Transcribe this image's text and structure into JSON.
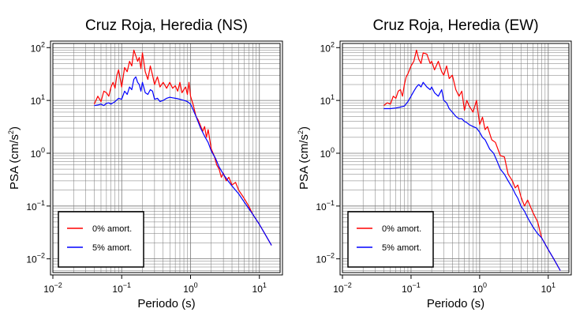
{
  "chart_data": [
    {
      "type": "line",
      "title": "Cruz Roja, Heredia (NS)",
      "xlabel": "Periodo (s)",
      "ylabel": "PSA (cm/s²)",
      "ylabel_base": "PSA (cm/s",
      "ylabel_exp": "2",
      "ylabel_end": ")",
      "x_scale": "log",
      "y_scale": "log",
      "xlim": [
        0.01,
        20
      ],
      "ylim": [
        0.0055,
        120
      ],
      "x_ticks": [
        {
          "v": 0.01,
          "base": "10",
          "exp": "−2"
        },
        {
          "v": 0.1,
          "base": "10",
          "exp": "−1"
        },
        {
          "v": 1,
          "base": "10",
          "exp": "0"
        },
        {
          "v": 10,
          "base": "10",
          "exp": "1"
        }
      ],
      "y_ticks": [
        {
          "v": 0.01,
          "base": "10",
          "exp": "−2"
        },
        {
          "v": 0.1,
          "base": "10",
          "exp": "−1"
        },
        {
          "v": 1,
          "base": "10",
          "exp": "0"
        },
        {
          "v": 10,
          "base": "10",
          "exp": "1"
        },
        {
          "v": 100,
          "base": "10",
          "exp": "2"
        }
      ],
      "grid": true,
      "legend_position": "bottom-left",
      "series": [
        {
          "name": "0% amort.",
          "color": "#ff0000",
          "x": [
            0.04,
            0.045,
            0.05,
            0.055,
            0.06,
            0.065,
            0.07,
            0.075,
            0.08,
            0.085,
            0.09,
            0.1,
            0.11,
            0.12,
            0.13,
            0.14,
            0.15,
            0.16,
            0.17,
            0.18,
            0.19,
            0.2,
            0.22,
            0.24,
            0.26,
            0.28,
            0.3,
            0.33,
            0.36,
            0.4,
            0.45,
            0.5,
            0.55,
            0.6,
            0.65,
            0.7,
            0.75,
            0.8,
            0.85,
            0.9,
            0.95,
            1.0,
            1.1,
            1.2,
            1.3,
            1.4,
            1.5,
            1.6,
            1.7,
            1.8,
            2.0,
            2.2,
            2.4,
            2.6,
            2.8,
            3.0,
            3.3,
            3.6,
            4.0,
            4.5,
            5.0,
            6.0,
            7.0,
            8.0,
            10.0,
            12.0,
            15.0
          ],
          "y": [
            8.5,
            12,
            9.5,
            15,
            14,
            12,
            18,
            22,
            17,
            30,
            38,
            18,
            42,
            35,
            55,
            45,
            90,
            70,
            55,
            65,
            40,
            80,
            35,
            25,
            45,
            30,
            20,
            28,
            18,
            22,
            17,
            22,
            17,
            19,
            15,
            22,
            14,
            16,
            18,
            13,
            22,
            12,
            8,
            5,
            4.2,
            3.3,
            2.6,
            3.2,
            2.0,
            2.8,
            1.2,
            0.9,
            0.6,
            0.5,
            0.35,
            0.42,
            0.3,
            0.35,
            0.25,
            0.28,
            0.2,
            0.14,
            0.1,
            0.07,
            0.045,
            0.03,
            0.018
          ]
        },
        {
          "name": "5% amort.",
          "color": "#0000ff",
          "x": [
            0.04,
            0.045,
            0.05,
            0.055,
            0.06,
            0.065,
            0.07,
            0.08,
            0.09,
            0.1,
            0.11,
            0.12,
            0.13,
            0.14,
            0.15,
            0.16,
            0.17,
            0.18,
            0.19,
            0.2,
            0.22,
            0.24,
            0.26,
            0.28,
            0.3,
            0.33,
            0.36,
            0.4,
            0.45,
            0.5,
            0.55,
            0.6,
            0.65,
            0.7,
            0.8,
            0.9,
            1.0,
            1.1,
            1.2,
            1.4,
            1.6,
            1.8,
            2.0,
            2.3,
            2.6,
            3.0,
            3.5,
            4.0,
            5.0,
            6.0,
            7.0,
            8.0,
            10.0,
            12.0,
            15.0
          ],
          "y": [
            8.0,
            8.2,
            8.5,
            8.0,
            8.8,
            9.0,
            8.5,
            9.5,
            11,
            10.5,
            15,
            13,
            18,
            16,
            25,
            28,
            22,
            20,
            15,
            22,
            14,
            13,
            16,
            15,
            10.5,
            11,
            9.5,
            10,
            11,
            11.5,
            11.2,
            11,
            10.8,
            10.5,
            10,
            9.5,
            8.5,
            6.5,
            5,
            3,
            2.1,
            1.6,
            1.1,
            0.8,
            0.55,
            0.4,
            0.3,
            0.24,
            0.17,
            0.12,
            0.09,
            0.07,
            0.045,
            0.03,
            0.018
          ]
        }
      ]
    },
    {
      "type": "line",
      "title": "Cruz Roja, Heredia (EW)",
      "xlabel": "Periodo (s)",
      "ylabel": "PSA (cm/s²)",
      "ylabel_base": "PSA (cm/s",
      "ylabel_exp": "2",
      "ylabel_end": ")",
      "x_scale": "log",
      "y_scale": "log",
      "xlim": [
        0.01,
        20
      ],
      "ylim": [
        0.0055,
        120
      ],
      "x_ticks": [
        {
          "v": 0.01,
          "base": "10",
          "exp": "−2"
        },
        {
          "v": 0.1,
          "base": "10",
          "exp": "−1"
        },
        {
          "v": 1,
          "base": "10",
          "exp": "0"
        },
        {
          "v": 10,
          "base": "10",
          "exp": "1"
        }
      ],
      "y_ticks": [
        {
          "v": 0.01,
          "base": "10",
          "exp": "−2"
        },
        {
          "v": 0.1,
          "base": "10",
          "exp": "−1"
        },
        {
          "v": 1,
          "base": "10",
          "exp": "0"
        },
        {
          "v": 10,
          "base": "10",
          "exp": "1"
        },
        {
          "v": 100,
          "base": "10",
          "exp": "2"
        }
      ],
      "grid": true,
      "legend_position": "bottom-left",
      "series": [
        {
          "name": "0% amort.",
          "color": "#ff0000",
          "x": [
            0.04,
            0.045,
            0.05,
            0.055,
            0.06,
            0.065,
            0.07,
            0.075,
            0.08,
            0.085,
            0.09,
            0.1,
            0.11,
            0.12,
            0.13,
            0.14,
            0.15,
            0.17,
            0.19,
            0.2,
            0.22,
            0.25,
            0.28,
            0.3,
            0.33,
            0.36,
            0.4,
            0.45,
            0.5,
            0.55,
            0.6,
            0.65,
            0.7,
            0.8,
            0.9,
            1.0,
            1.1,
            1.2,
            1.3,
            1.5,
            1.7,
            2.0,
            2.3,
            2.6,
            3.0,
            3.3,
            3.6,
            4.0,
            4.5,
            5.0,
            6.0,
            7.0,
            8.0,
            10.0,
            12.0,
            15.0
          ],
          "y": [
            8.0,
            9.0,
            8.5,
            12,
            11,
            15,
            16,
            12,
            20,
            28,
            32,
            45,
            55,
            90,
            60,
            50,
            80,
            75,
            50,
            55,
            38,
            55,
            35,
            30,
            45,
            26,
            30,
            16,
            12,
            15,
            6.5,
            10,
            8,
            6,
            10,
            3.5,
            4.8,
            2.8,
            3.2,
            1.8,
            1.6,
            0.9,
            0.85,
            0.4,
            0.3,
            0.22,
            0.25,
            0.15,
            0.1,
            0.13,
            0.075,
            0.05,
            0.025,
            0.015,
            0.01,
            0.006
          ]
        },
        {
          "name": "5% amort.",
          "color": "#0000ff",
          "x": [
            0.04,
            0.05,
            0.06,
            0.07,
            0.08,
            0.09,
            0.1,
            0.11,
            0.12,
            0.13,
            0.14,
            0.15,
            0.17,
            0.19,
            0.2,
            0.22,
            0.25,
            0.28,
            0.3,
            0.33,
            0.36,
            0.4,
            0.45,
            0.5,
            0.55,
            0.6,
            0.65,
            0.7,
            0.8,
            0.9,
            1.0,
            1.1,
            1.2,
            1.4,
            1.6,
            1.8,
            2.0,
            2.3,
            2.6,
            3.0,
            3.3,
            3.6,
            4.0,
            4.5,
            5.0,
            6.0,
            7.0,
            8.0,
            10.0,
            12.0,
            15.0
          ],
          "y": [
            7.0,
            7.0,
            7.2,
            7.5,
            7.8,
            9.5,
            12,
            15,
            18,
            20,
            18,
            22,
            18,
            16,
            18,
            14,
            12,
            16,
            10,
            9,
            7,
            6,
            5,
            4.5,
            4.5,
            4.0,
            3.8,
            3.5,
            3.2,
            3.0,
            2.5,
            2.0,
            1.8,
            1.2,
            1.0,
            0.7,
            0.5,
            0.4,
            0.3,
            0.22,
            0.17,
            0.14,
            0.1,
            0.08,
            0.06,
            0.04,
            0.03,
            0.025,
            0.015,
            0.01,
            0.006
          ]
        }
      ]
    }
  ]
}
